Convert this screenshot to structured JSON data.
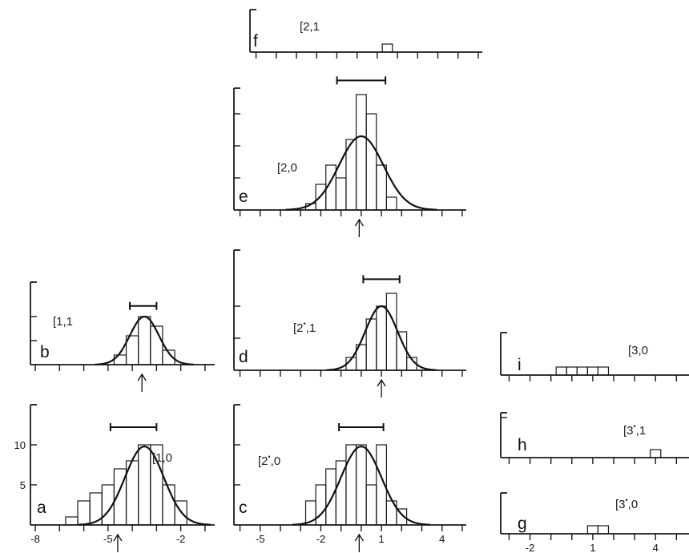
{
  "chart_data": [
    {
      "id": "a",
      "type": "bar",
      "panel_label": "a",
      "state_label": "[1,0",
      "x_ticks": [
        -8,
        -5,
        -2
      ],
      "y_ticks": [
        5,
        10
      ],
      "xlim": [
        -8.2,
        -0.6
      ],
      "ylim": [
        0,
        13
      ],
      "bin_width": 0.5,
      "bins": [
        [
          -6.5,
          1
        ],
        [
          -6.0,
          3
        ],
        [
          -5.5,
          4
        ],
        [
          -5.0,
          5
        ],
        [
          -4.5,
          7
        ],
        [
          -4.0,
          8
        ],
        [
          -3.5,
          10
        ],
        [
          -3.0,
          10
        ],
        [
          -2.5,
          5
        ],
        [
          -2.0,
          3
        ]
      ],
      "gaussian": {
        "mean": -3.5,
        "sigma": 0.8,
        "peak": 9.8
      },
      "error_bar": [
        -4.9,
        -3.0
      ],
      "arrow_at": -4.6
    },
    {
      "id": "b",
      "type": "bar",
      "panel_label": "b",
      "state_label": "[1,1",
      "x_ticks": [],
      "y_ticks": [],
      "xlim": [
        -8.2,
        -0.6
      ],
      "ylim": [
        0,
        13
      ],
      "bin_width": 0.5,
      "bins": [
        [
          -4.5,
          2
        ],
        [
          -4.0,
          6
        ],
        [
          -3.5,
          10
        ],
        [
          -3.0,
          8
        ],
        [
          -2.5,
          3
        ]
      ],
      "gaussian": {
        "mean": -3.5,
        "sigma": 0.6,
        "peak": 10
      },
      "error_bar": [
        -4.1,
        -3.0
      ],
      "arrow_at": -3.6
    },
    {
      "id": "c",
      "type": "bar",
      "panel_label": "c",
      "state_label": "[2*,0",
      "x_ticks": [
        -5,
        -2,
        1,
        4
      ],
      "y_ticks": [],
      "xlim": [
        -6.3,
        5.2
      ],
      "ylim": [
        0,
        13
      ],
      "bin_width": 0.5,
      "bins": [
        [
          -2.5,
          3
        ],
        [
          -2.0,
          5
        ],
        [
          -1.5,
          7
        ],
        [
          -1.0,
          8
        ],
        [
          -0.5,
          10
        ],
        [
          0.0,
          10
        ],
        [
          0.5,
          5
        ],
        [
          1.0,
          10
        ],
        [
          1.5,
          3
        ],
        [
          2.0,
          2
        ]
      ],
      "gaussian": {
        "mean": 0,
        "sigma": 1.0,
        "peak": 9.8
      },
      "error_bar": [
        -1.1,
        1.1
      ],
      "arrow_at": -0.1
    },
    {
      "id": "d",
      "type": "bar",
      "panel_label": "d",
      "state_label": "[2*,1",
      "x_ticks": [],
      "y_ticks": [],
      "xlim": [
        -6.3,
        5.2
      ],
      "ylim": [
        0,
        13
      ],
      "bin_width": 0.5,
      "bins": [
        [
          -0.5,
          2
        ],
        [
          0.0,
          4
        ],
        [
          0.5,
          8
        ],
        [
          1.0,
          10
        ],
        [
          1.5,
          12
        ],
        [
          2.0,
          6
        ],
        [
          2.5,
          2
        ]
      ],
      "gaussian": {
        "mean": 1.0,
        "sigma": 0.8,
        "peak": 10
      },
      "error_bar": [
        0.1,
        1.9
      ],
      "arrow_at": 1.0
    },
    {
      "id": "e",
      "type": "bar",
      "panel_label": "e",
      "state_label": "[2,0",
      "x_ticks": [],
      "y_ticks": [],
      "xlim": [
        -6.3,
        5.2
      ],
      "ylim": [
        0,
        19
      ],
      "bin_width": 0.5,
      "bins": [
        [
          -2.5,
          1
        ],
        [
          -2.0,
          4
        ],
        [
          -1.5,
          7
        ],
        [
          -1.0,
          5
        ],
        [
          -0.5,
          11
        ],
        [
          0.0,
          18
        ],
        [
          0.5,
          15
        ],
        [
          1.0,
          7
        ],
        [
          1.5,
          2
        ]
      ],
      "gaussian": {
        "mean": 0,
        "sigma": 1.1,
        "peak": 11.5
      },
      "error_bar": [
        -1.2,
        1.2
      ],
      "arrow_at": -0.1
    },
    {
      "id": "f",
      "type": "bar",
      "panel_label": "f",
      "state_label": "[2,1",
      "x_ticks": [],
      "y_ticks": [],
      "xlim": [
        -6.3,
        5.2
      ],
      "ylim": [
        0,
        13
      ],
      "bin_width": 0.5,
      "bins": [
        [
          0.5,
          1
        ]
      ],
      "gaussian": null,
      "error_bar": null,
      "arrow_at": null
    },
    {
      "id": "g",
      "type": "bar",
      "panel_label": "g",
      "state_label": "[3*,0",
      "x_ticks": [
        -2,
        1,
        4
      ],
      "y_ticks": [],
      "xlim": [
        -3.4,
        5.6
      ],
      "ylim": [
        0,
        13
      ],
      "bin_width": 0.5,
      "bins": [
        [
          1.0,
          1
        ],
        [
          1.5,
          1
        ]
      ],
      "gaussian": null,
      "error_bar": null,
      "arrow_at": null
    },
    {
      "id": "h",
      "type": "bar",
      "panel_label": "h",
      "state_label": "[3*,1",
      "x_ticks": [],
      "y_ticks": [],
      "xlim": [
        -3.4,
        5.6
      ],
      "ylim": [
        0,
        13
      ],
      "bin_width": 0.5,
      "bins": [
        [
          4.0,
          1
        ]
      ],
      "gaussian": null,
      "error_bar": null,
      "arrow_at": null
    },
    {
      "id": "i",
      "type": "bar",
      "panel_label": "i",
      "state_label": "[3,0",
      "x_ticks": [],
      "y_ticks": [],
      "xlim": [
        -3.4,
        5.6
      ],
      "ylim": [
        0,
        13
      ],
      "bin_width": 0.5,
      "bins": [
        [
          -0.5,
          1
        ],
        [
          0.0,
          1
        ],
        [
          0.5,
          1
        ],
        [
          1.0,
          1
        ],
        [
          1.5,
          1
        ]
      ],
      "gaussian": null,
      "error_bar": null,
      "arrow_at": null
    }
  ]
}
